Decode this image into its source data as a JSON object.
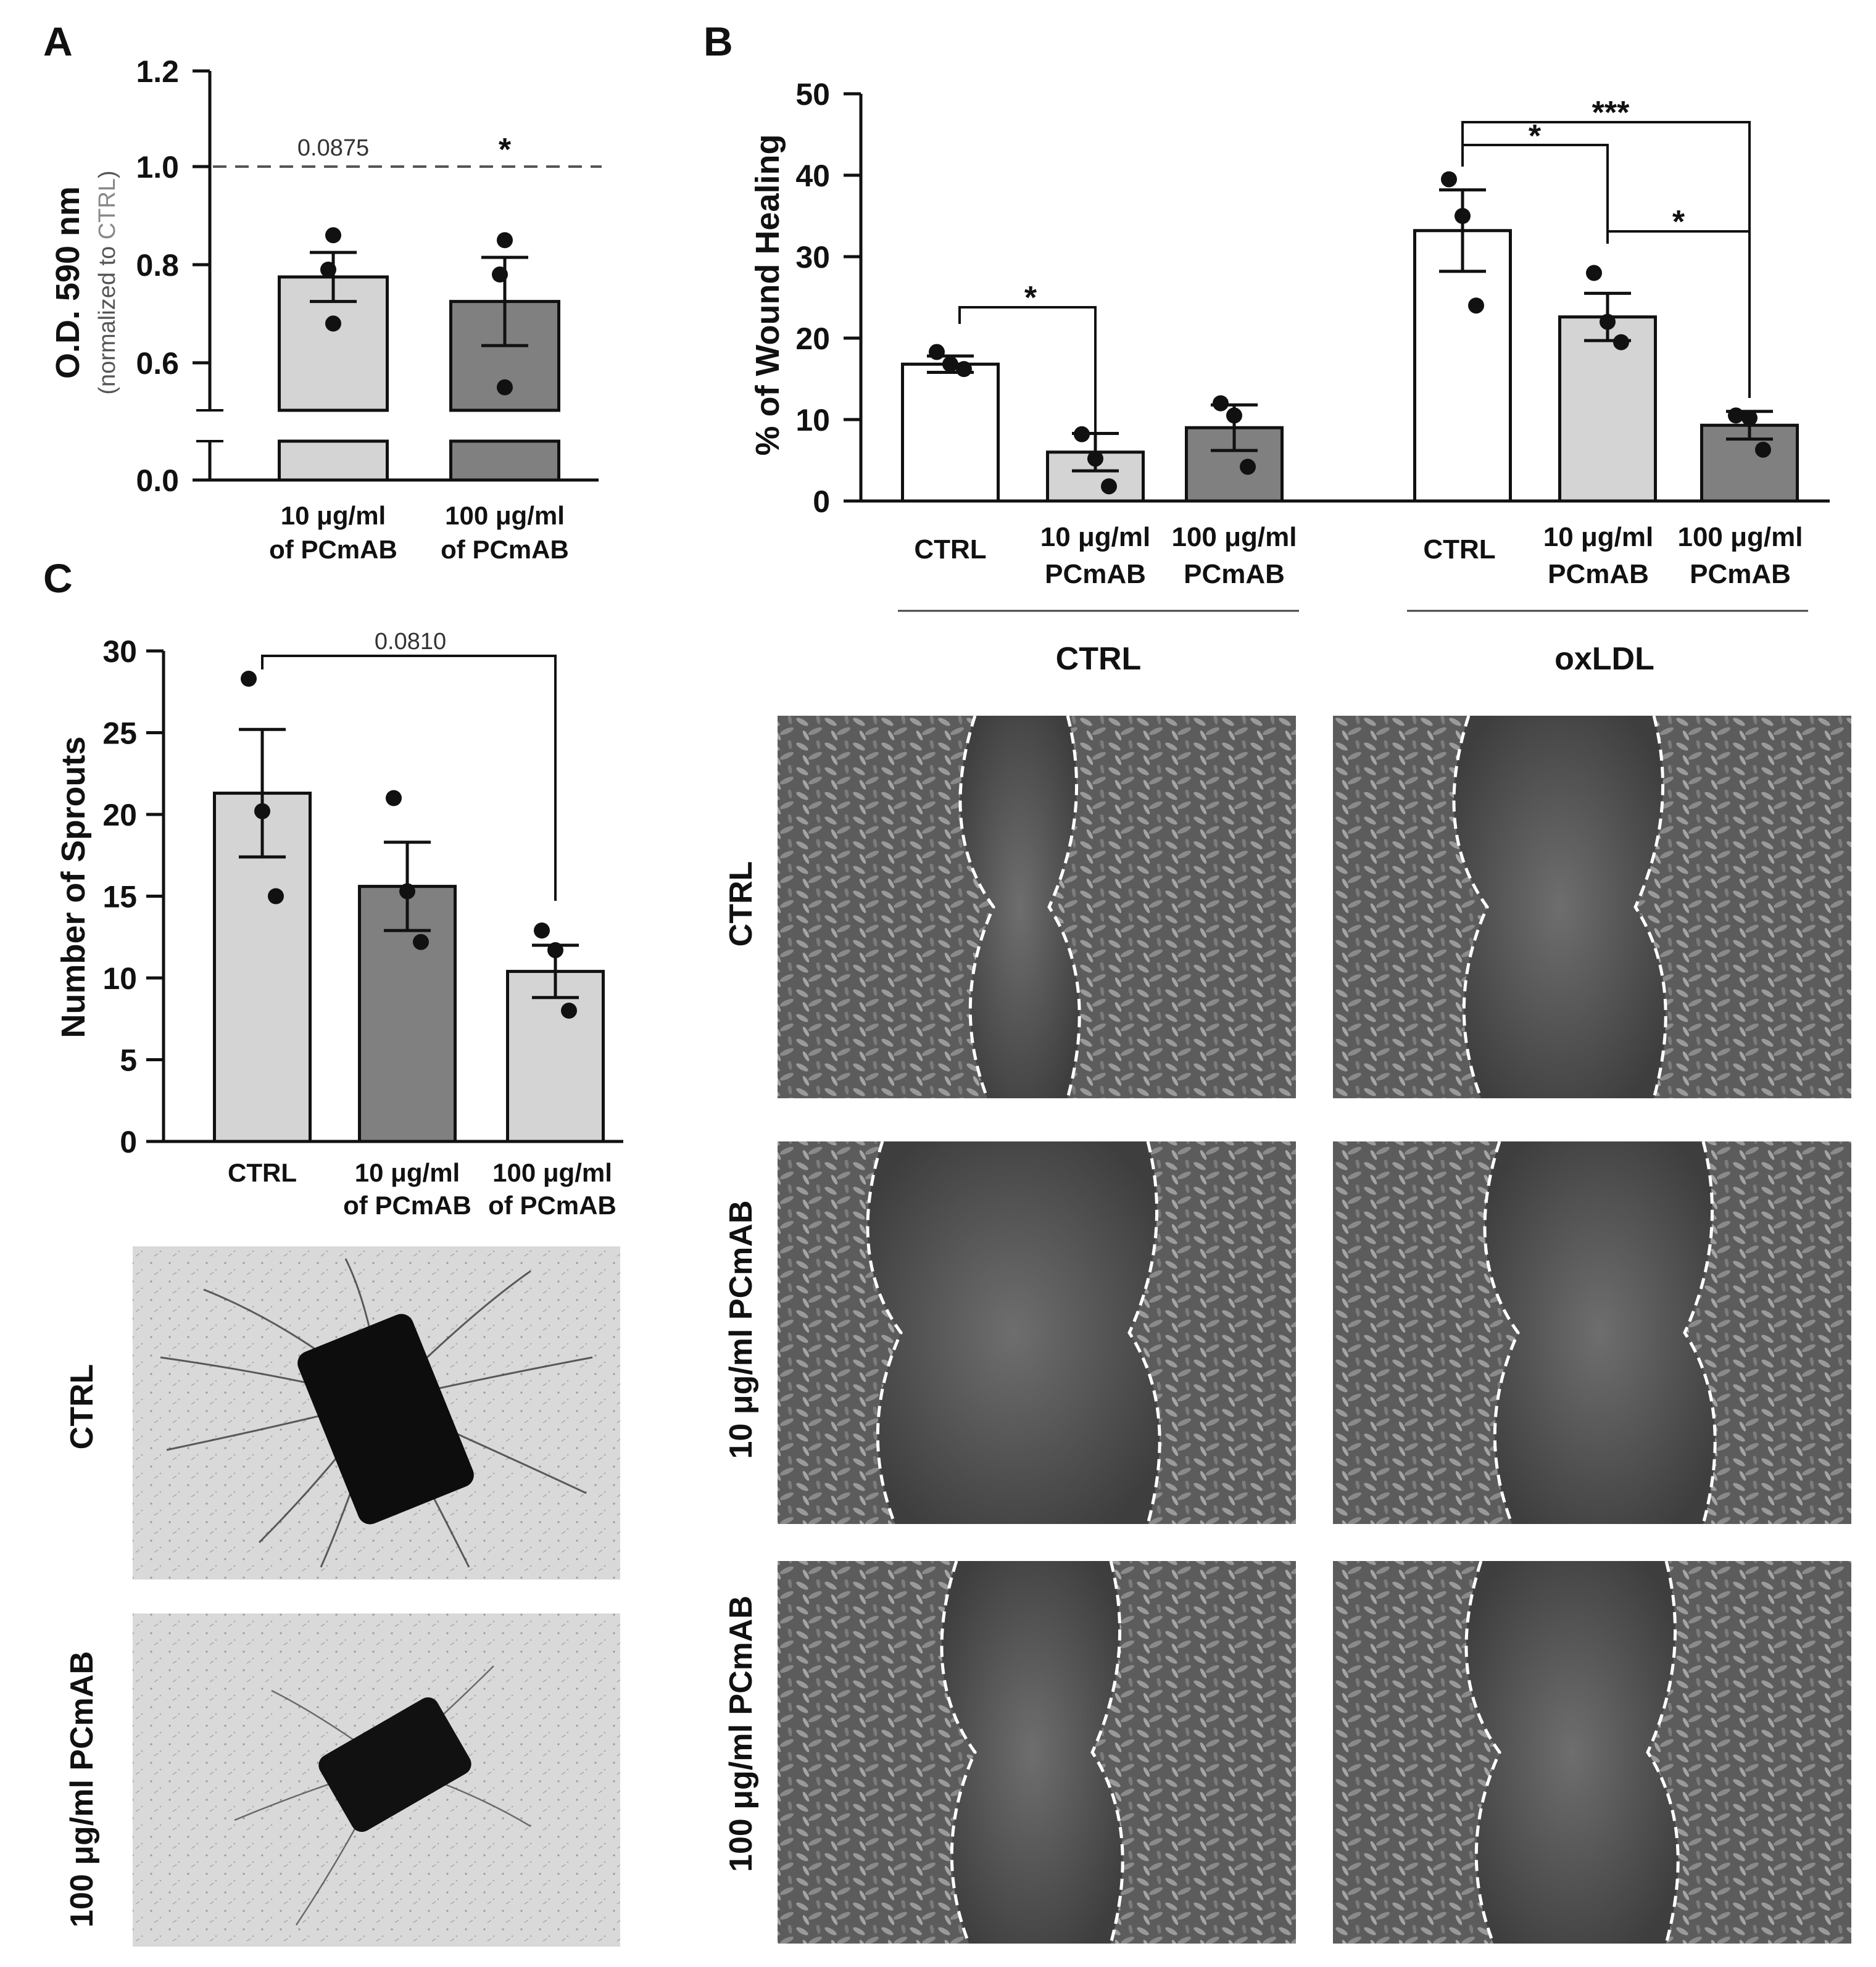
{
  "panels": {
    "A": "A",
    "B": "B",
    "C": "C"
  },
  "chart_data": [
    {
      "id": "A",
      "type": "bar",
      "ylabel": "O.D. 590 nm",
      "ylabel_sub_prefix": "(normalized to ",
      "ylabel_sub_highlight": "CTRL",
      "ylabel_sub_suffix": ")",
      "y_ticks_upper": [
        "0.6",
        "0.8",
        "1.0",
        "1.2"
      ],
      "y_tick_lower": "0.0",
      "ylim": [
        0,
        1.2
      ],
      "axis_break": true,
      "reference_line": 1.0,
      "categories": [
        {
          "line1": "10 μg/ml",
          "line2": "of PCmAB"
        },
        {
          "line1": "100 μg/ml",
          "line2": "of PCmAB"
        }
      ],
      "values": [
        0.775,
        0.725
      ],
      "sem": [
        0.05,
        0.09
      ],
      "points": [
        [
          0.86,
          0.79,
          0.68
        ],
        [
          0.85,
          0.78,
          0.55
        ]
      ],
      "bar_colors": [
        "#d4d4d4",
        "#808080"
      ],
      "annotations": [
        "0.0875",
        "*"
      ]
    },
    {
      "id": "B",
      "type": "bar",
      "ylabel": "% of Wound Healing",
      "y_ticks": [
        "0",
        "10",
        "20",
        "30",
        "40",
        "50"
      ],
      "ylim": [
        0,
        50
      ],
      "groups": [
        {
          "name": "CTRL",
          "categories": [
            {
              "line1": "CTRL",
              "line2": ""
            },
            {
              "line1": "10 μg/ml",
              "line2": "PCmAB"
            },
            {
              "line1": "100 μg/ml",
              "line2": "PCmAB"
            }
          ],
          "values": [
            16.8,
            6.0,
            9.0
          ],
          "sem": [
            1.0,
            2.3,
            2.8
          ],
          "points": [
            [
              18.3,
              16.8,
              16.2
            ],
            [
              8.2,
              5.2,
              1.8
            ],
            [
              12.0,
              10.5,
              4.2
            ]
          ]
        },
        {
          "name": "oxLDL",
          "categories": [
            {
              "line1": "CTRL",
              "line2": ""
            },
            {
              "line1": "10 μg/ml",
              "line2": "PCmAB"
            },
            {
              "line1": "100 μg/ml",
              "line2": "PCmAB"
            }
          ],
          "values": [
            33.2,
            22.6,
            9.3
          ],
          "sem": [
            5.0,
            2.9,
            1.7
          ],
          "points": [
            [
              39.5,
              35.0,
              24.0
            ],
            [
              28.0,
              22.0,
              19.5
            ],
            [
              10.5,
              10.2,
              6.3
            ]
          ]
        }
      ],
      "bar_colors": [
        "#ffffff",
        "#d4d4d4",
        "#808080"
      ],
      "significance": [
        "*",
        "*",
        "***",
        "*"
      ]
    },
    {
      "id": "C",
      "type": "bar",
      "ylabel": "Number of Sprouts",
      "y_ticks": [
        "0",
        "5",
        "10",
        "15",
        "20",
        "25",
        "30"
      ],
      "ylim": [
        0,
        30
      ],
      "categories": [
        {
          "line1": "CTRL",
          "line2": ""
        },
        {
          "line1": "10 μg/ml",
          "line2": "of PCmAB"
        },
        {
          "line1": "100 μg/ml",
          "line2": "of PCmAB"
        }
      ],
      "values": [
        21.3,
        15.6,
        10.4
      ],
      "sem": [
        3.9,
        2.7,
        1.6
      ],
      "points": [
        [
          28.3,
          20.2,
          15.0
        ],
        [
          21.0,
          15.3,
          12.2
        ],
        [
          12.9,
          11.7,
          8.0
        ]
      ],
      "bar_colors": [
        "#d4d4d4",
        "#808080",
        "#d4d4d4"
      ],
      "annotations": [
        "0.0810"
      ]
    }
  ],
  "micrographs": {
    "C_rows": [
      "CTRL",
      "100 μg/ml PCmAB"
    ],
    "B_columns": [
      "CTRL",
      "oxLDL"
    ],
    "B_rows": [
      "CTRL",
      "10 μg/ml PCmAB",
      "100 μg/ml PCmAB"
    ]
  }
}
